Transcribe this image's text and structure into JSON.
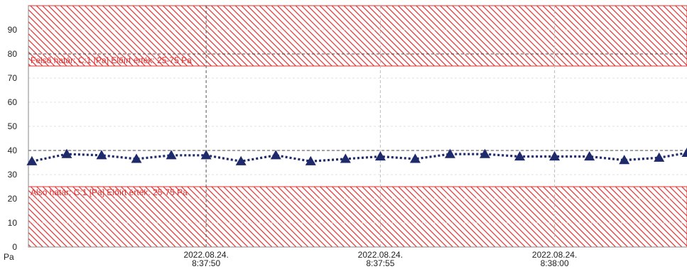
{
  "chart_data": {
    "type": "line",
    "title": "",
    "xlabel": "",
    "ylabel": "Pa",
    "ylim": [
      0,
      100
    ],
    "y_ticks": [
      "0",
      "10",
      "20",
      "30",
      "40",
      "50",
      "60",
      "70",
      "80",
      "90"
    ],
    "x_ticks": [
      {
        "value": 50,
        "date": "2022.08.24.",
        "time": "8:37:50"
      },
      {
        "value": 55,
        "date": "2022.08.24.",
        "time": "8:37:55"
      },
      {
        "value": 60,
        "date": "2022.08.24.",
        "time": "8:38:00"
      }
    ],
    "x_unit": "seconds after 8:37:00",
    "xlim": [
      44.9,
      63.8
    ],
    "grid": {
      "vertical": true,
      "horizontal": true
    },
    "reference_lines": [
      {
        "value": 80,
        "style": "dashed",
        "color": "#444444"
      },
      {
        "value": 40,
        "style": "dashed",
        "color": "#444444"
      }
    ],
    "bands": [
      {
        "name": "upper",
        "from": 75,
        "to": 100,
        "label": "Felső határ: C:1 [Pa] Előírt érték: 25-75 Pa",
        "color": "#e03030"
      },
      {
        "name": "lower",
        "from": 0,
        "to": 25,
        "label": "Alsó határ: C:1 [Pa] Előírt érték: 25-75 Pa",
        "color": "#e03030"
      }
    ],
    "series": [
      {
        "color": "#1f2a6b",
        "marker": "triangle",
        "line_style": "dotted",
        "points": [
          {
            "x": 45.0,
            "y": 35.5
          },
          {
            "x": 46.0,
            "y": 38.5
          },
          {
            "x": 47.0,
            "y": 38.0
          },
          {
            "x": 48.0,
            "y": 36.5
          },
          {
            "x": 49.0,
            "y": 38.0
          },
          {
            "x": 50.0,
            "y": 38.0
          },
          {
            "x": 51.0,
            "y": 35.5
          },
          {
            "x": 52.0,
            "y": 38.0
          },
          {
            "x": 53.0,
            "y": 35.5
          },
          {
            "x": 54.0,
            "y": 36.5
          },
          {
            "x": 55.0,
            "y": 37.5
          },
          {
            "x": 56.0,
            "y": 36.5
          },
          {
            "x": 57.0,
            "y": 38.5
          },
          {
            "x": 58.0,
            "y": 38.5
          },
          {
            "x": 59.0,
            "y": 37.5
          },
          {
            "x": 60.0,
            "y": 37.5
          },
          {
            "x": 61.0,
            "y": 37.5
          },
          {
            "x": 62.0,
            "y": 36.0
          },
          {
            "x": 63.0,
            "y": 37.0
          },
          {
            "x": 63.8,
            "y": 39.0
          }
        ]
      }
    ]
  }
}
